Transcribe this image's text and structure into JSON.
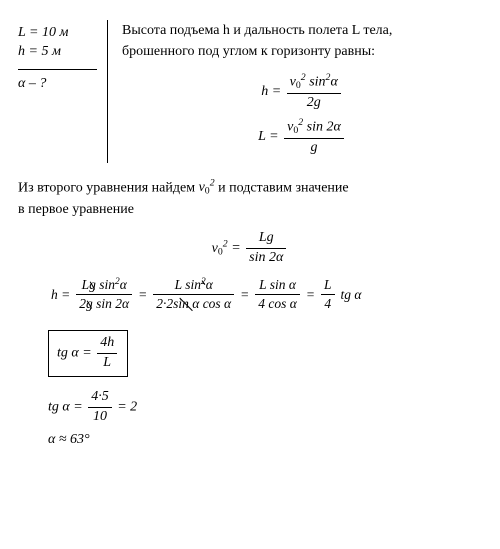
{
  "given": {
    "L_line": "L = 10 м",
    "h_line": "h = 5 м",
    "question": "α – ?"
  },
  "intro": {
    "l1": "Высота подъема h и дальность полета L тела,",
    "l2": "брошенного под углом к горизонту равны:"
  },
  "f1": {
    "lhs": "h =",
    "num": "v",
    "num_sub": "0",
    "num_sup": "2",
    "num_tail": " sin",
    "num_sup2": "2",
    "num_tail2": "α",
    "den": "2g"
  },
  "f2": {
    "lhs": "L =",
    "num": "v",
    "num_sub": "0",
    "num_sup": "2",
    "num_tail": " sin 2α",
    "den": "g"
  },
  "mid": {
    "l1_a": "Из второго уравнения найдем ",
    "v": "v",
    "v_sub": "0",
    "v_sup": "2",
    "l1_b": " и подставим значение",
    "l2": "в первое уравнение"
  },
  "f3": {
    "lhs_v": "v",
    "lhs_sub": "0",
    "lhs_sup": "2",
    "eq": " =",
    "num": "Lg",
    "den": "sin 2α"
  },
  "chain": {
    "lhs": "h =",
    "a_num_L": "L",
    "a_num_g": "g",
    "a_num_sin": " sin",
    "a_num_sup": "2",
    "a_num_a": "α",
    "a_den_2": "2",
    "a_den_g": "g",
    "a_den_sin": " sin 2α",
    "eq": "=",
    "b_num_L": "L",
    "b_num_sin": " sin",
    "b_num_sup": "2",
    "b_num_a": "α",
    "b_den": "2·2",
    "b_den_sin": "sin α",
    "b_den_cos": " cos α",
    "c_num": "L sin α",
    "c_den": "4 cos α",
    "d_num": "L",
    "d_den": "4",
    "d_tail": "tg α"
  },
  "boxed": {
    "lhs": "tg α =",
    "num": "4h",
    "den": "L"
  },
  "calc": {
    "lhs": "tg α =",
    "num": "4·5",
    "den": "10",
    "rhs": "= 2"
  },
  "answer": "α ≈ 63°"
}
